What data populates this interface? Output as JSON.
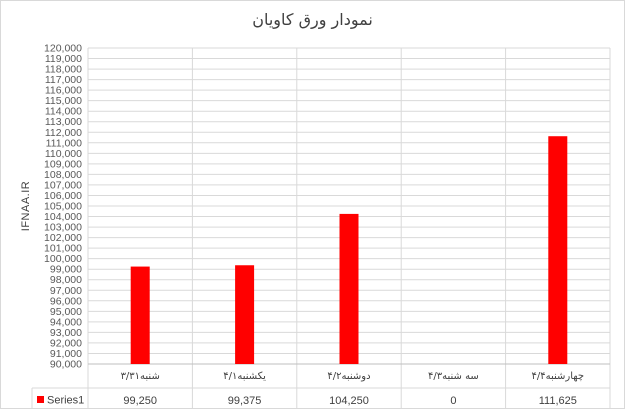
{
  "title": "نمودار ورق کاویان",
  "chart_data": {
    "type": "bar",
    "title": "نمودار ورق کاویان",
    "xlabel": "",
    "ylabel": "IFNAA.IR",
    "ylim": [
      90000,
      120000
    ],
    "ytick_step": 1000,
    "grid": true,
    "legend": "data-table",
    "categories": [
      "شنبه۳/۳۱",
      "یکشنبه۴/۱",
      "دوشنبه۴/۲",
      "سه شنبه۴/۳",
      "چهارشنبه۴/۴"
    ],
    "series": [
      {
        "name": "Series1",
        "values": [
          99250,
          99375,
          104250,
          0,
          111625
        ],
        "value_labels": [
          "99,250",
          "99,375",
          "104,250",
          "0",
          "111,625"
        ],
        "color": "#ff0000"
      }
    ]
  }
}
